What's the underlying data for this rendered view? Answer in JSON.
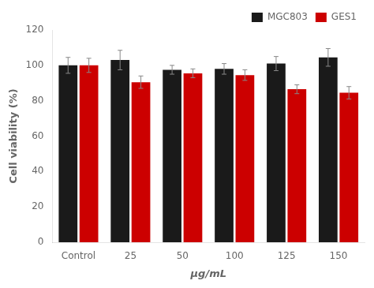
{
  "chart_data": {
    "type": "bar",
    "categories": [
      "Control",
      "25",
      "50",
      "100",
      "125",
      "150"
    ],
    "series": [
      {
        "name": "MGC803",
        "color": "#1a1a1a",
        "values": [
          100,
          103,
          97.5,
          98,
          101,
          104.5
        ],
        "errors": [
          4.5,
          5.5,
          2.5,
          3.0,
          4.0,
          5.0
        ]
      },
      {
        "name": "GES1",
        "color": "#cc0000",
        "values": [
          100,
          90.5,
          95.5,
          94.5,
          86.5,
          84.5
        ],
        "errors": [
          4.0,
          3.5,
          2.5,
          3.0,
          2.5,
          3.5
        ]
      }
    ],
    "xlabel": "μg/mL",
    "ylabel": "Cell viability (%)",
    "ylim": [
      0,
      120
    ],
    "yticks": [
      0,
      20,
      40,
      60,
      80,
      100,
      120
    ],
    "grid": false,
    "legend": "upper right"
  }
}
